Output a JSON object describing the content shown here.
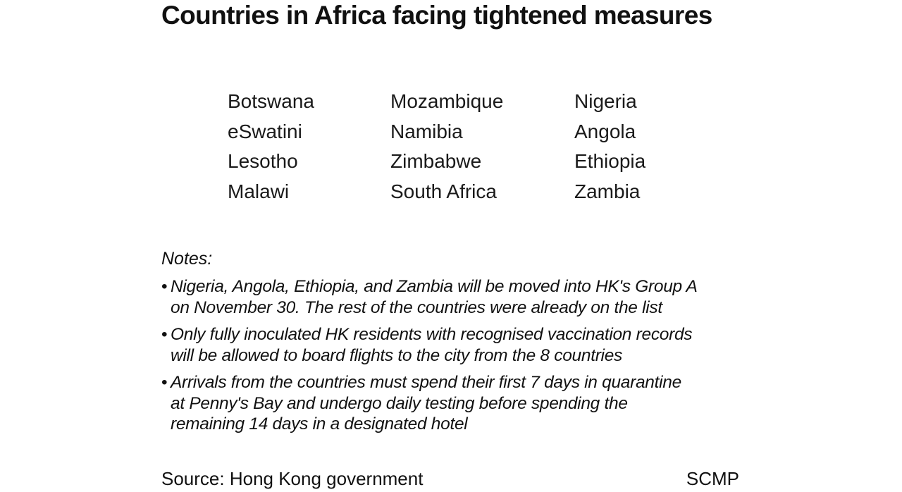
{
  "title": "Countries in Africa facing tightened measures",
  "columns": [
    [
      "Botswana",
      "eSwatini",
      "Lesotho",
      "Malawi"
    ],
    [
      "Mozambique",
      "Namibia",
      "Zimbabwe",
      "South Africa"
    ],
    [
      "Nigeria",
      "Angola",
      "Ethiopia",
      "Zambia"
    ]
  ],
  "notes": {
    "heading": "Notes:",
    "bullet": "•",
    "items": [
      [
        "Nigeria, Angola, Ethiopia, and Zambia will be moved into HK's Group A",
        "on November 30. The rest of the countries were already on the list"
      ],
      [
        "Only fully inoculated HK residents with recognised vaccination records",
        "will be allowed to board flights to the city from the 8 countries"
      ],
      [
        "Arrivals from the countries must spend their first 7 days in quarantine",
        "at Penny's Bay and undergo daily testing before spending the",
        "remaining 14 days in a designated hotel"
      ]
    ]
  },
  "footer": {
    "source": "Source: Hong Kong government",
    "credit": "SCMP"
  }
}
